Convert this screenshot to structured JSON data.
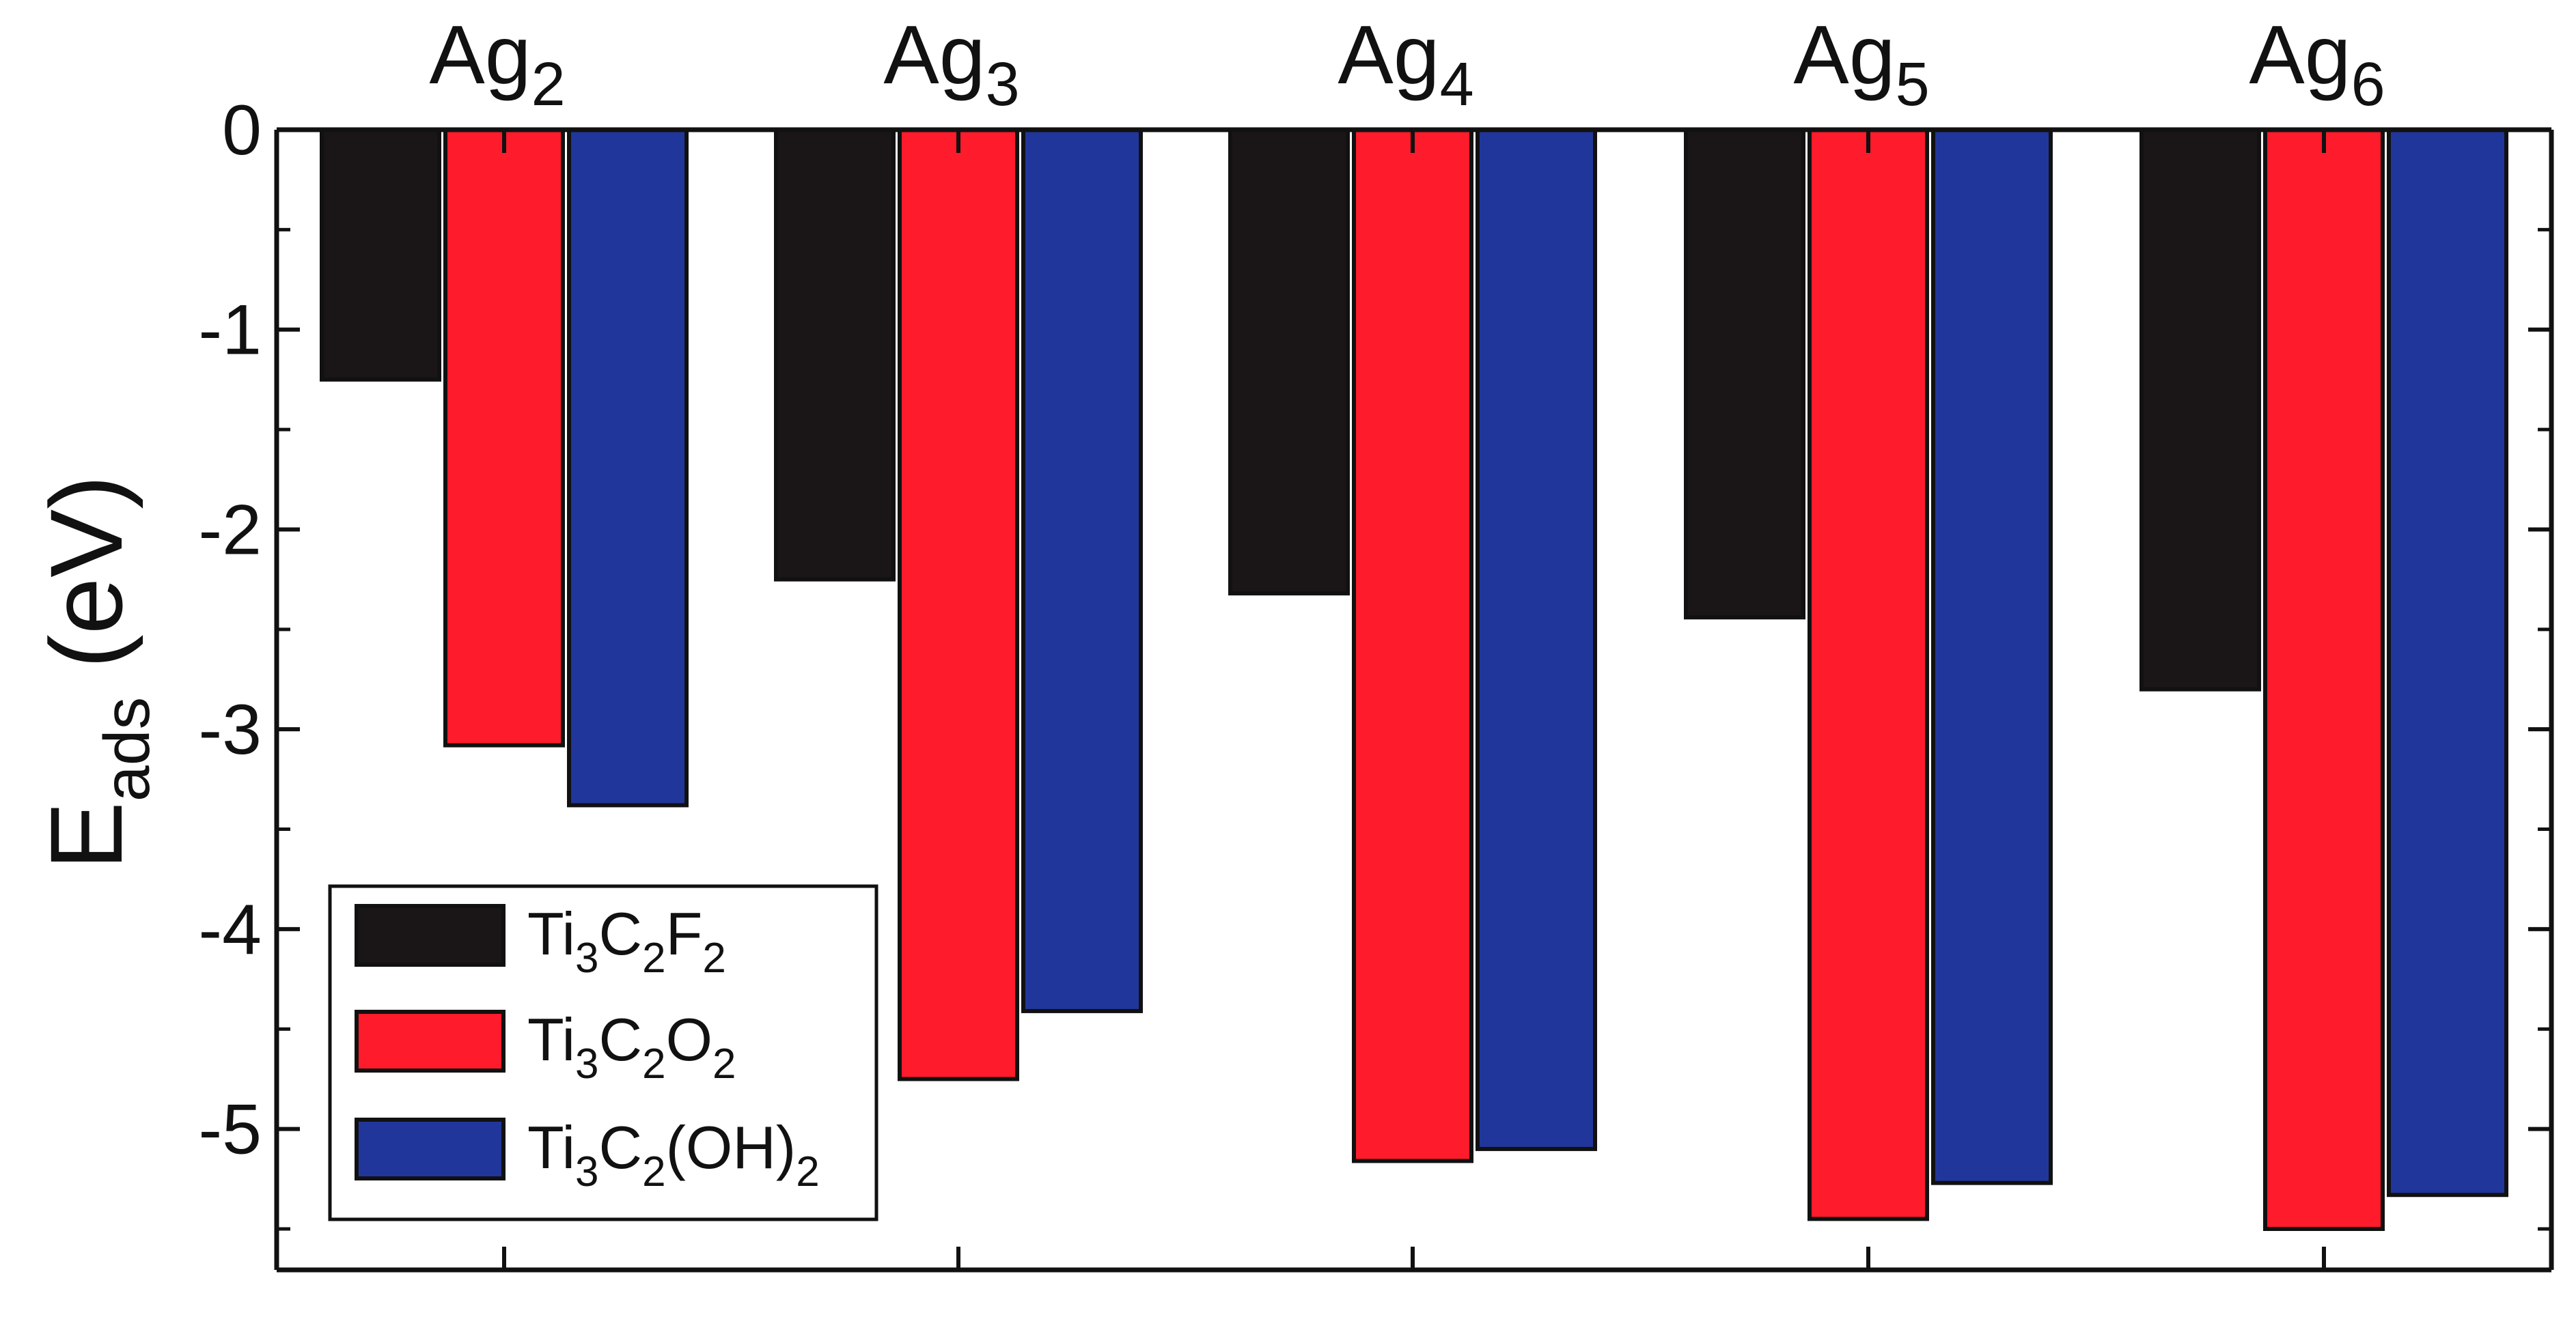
{
  "chart_data": {
    "type": "bar",
    "title": "",
    "xlabel": "",
    "ylabel": {
      "main": "E",
      "sub": "ads",
      "unit": "(eV)"
    },
    "categories": [
      {
        "base": "Ag",
        "sub": "2"
      },
      {
        "base": "Ag",
        "sub": "3"
      },
      {
        "base": "Ag",
        "sub": "4"
      },
      {
        "base": "Ag",
        "sub": "5"
      },
      {
        "base": "Ag",
        "sub": "6"
      }
    ],
    "series": [
      {
        "name": "Ti3C2F2",
        "label_parts": [
          [
            "Ti",
            ""
          ],
          [
            "3",
            "sub"
          ],
          [
            "C",
            ""
          ],
          [
            "2",
            "sub"
          ],
          [
            "F",
            ""
          ],
          [
            "2",
            "sub"
          ]
        ],
        "color": "#1a1617",
        "values": [
          -1.25,
          -2.25,
          -2.32,
          -2.44,
          -2.8
        ]
      },
      {
        "name": "Ti3C2O2",
        "label_parts": [
          [
            "Ti",
            ""
          ],
          [
            "3",
            "sub"
          ],
          [
            "C",
            ""
          ],
          [
            "2",
            "sub"
          ],
          [
            "O",
            ""
          ],
          [
            "2",
            "sub"
          ]
        ],
        "color": "#fe1b2b",
        "values": [
          -3.08,
          -4.75,
          -5.16,
          -5.45,
          -5.5
        ]
      },
      {
        "name": "Ti3C2(OH)2",
        "label_parts": [
          [
            "Ti",
            ""
          ],
          [
            "3",
            "sub"
          ],
          [
            "C",
            ""
          ],
          [
            "2",
            "sub"
          ],
          [
            "(OH)",
            ""
          ],
          [
            "2",
            "sub"
          ]
        ],
        "color": "#21369a",
        "values": [
          -3.38,
          -4.41,
          -5.1,
          -5.27,
          -5.33
        ]
      }
    ],
    "ylim": [
      -5.6,
      0
    ],
    "yticks": [
      0,
      -1,
      -2,
      -3,
      -4,
      -5
    ],
    "ytick_labels": [
      "0",
      "-1",
      "-2",
      "-3",
      "-4",
      "-5"
    ],
    "legend_position": "bottom-left",
    "grid": false
  },
  "colors": {
    "axis": "#111111",
    "background": "#ffffff"
  }
}
